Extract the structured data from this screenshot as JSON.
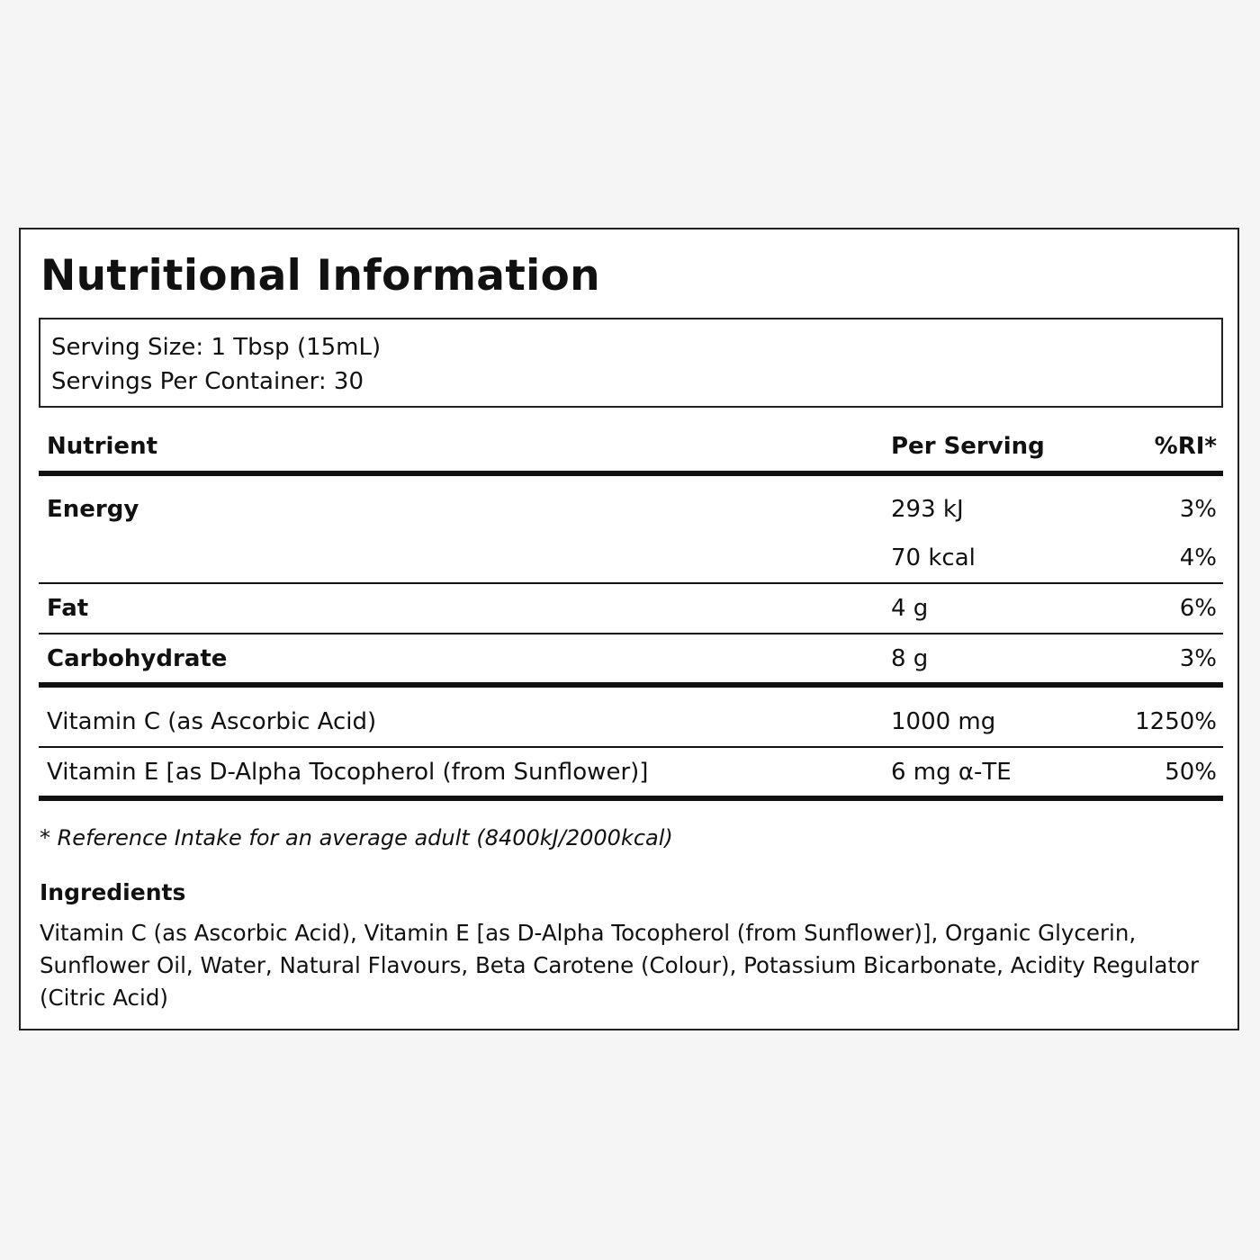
{
  "title": "Nutritional Information",
  "serving": {
    "size": "Serving Size: 1 Tbsp (15mL)",
    "per_container": "Servings Per Container: 30"
  },
  "table": {
    "headers": [
      "Nutrient",
      "Per Serving",
      "%RI*"
    ],
    "rows": [
      {
        "nutrient": "Energy",
        "per_serving": "293 kJ",
        "ri": "3%"
      },
      {
        "nutrient": "",
        "per_serving": "70 kcal",
        "ri": "4%"
      },
      {
        "nutrient": "Fat",
        "per_serving": "4 g",
        "ri": "6%"
      },
      {
        "nutrient": "Carbohydrate",
        "per_serving": "8 g",
        "ri": "3%"
      },
      {
        "nutrient": "Vitamin C (as Ascorbic Acid)",
        "per_serving": "1000 mg",
        "ri": "1250%"
      },
      {
        "nutrient": "Vitamin E [as D-Alpha Tocopherol (from Sunflower)]",
        "per_serving": "6 mg α-TE",
        "ri": "50%"
      }
    ]
  },
  "footnote": "* Reference Intake for an average adult (8400kJ/2000kcal)",
  "ingredients": {
    "heading": "Ingredients",
    "text": "Vitamin C (as Ascorbic Acid), Vitamin E [as D-Alpha Tocopherol (from Sunflower)], Organic Glycerin, Sunflower Oil, Water, Natural Flavours, Beta Carotene (Colour), Potassium Bicarbonate, Acidity Regulator (Citric Acid)"
  }
}
